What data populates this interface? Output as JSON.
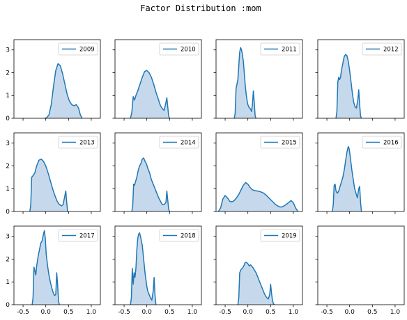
{
  "chart_data": {
    "type": "area",
    "title": "Factor Distribution :mom",
    "grid": false,
    "legend_placement": "upper right",
    "x_ticks": [
      "-0.5",
      "0.0",
      "0.5",
      "1.0"
    ],
    "y_ticks": [
      "0",
      "1",
      "2",
      "3"
    ],
    "xlim": [
      -0.7,
      1.2
    ],
    "ylim": [
      0,
      3.45
    ],
    "line_color": "#1f77b4",
    "fill_color": "#c6d9ec",
    "panels": [
      {
        "series": "2009",
        "x": [
          -0.02,
          0.02,
          0.07,
          0.12,
          0.17,
          0.22,
          0.27,
          0.32,
          0.37,
          0.42,
          0.47,
          0.52,
          0.57,
          0.62,
          0.67,
          0.72,
          0.76,
          0.8
        ],
        "y": [
          0,
          0.02,
          0.15,
          0.6,
          1.4,
          2.1,
          2.4,
          2.3,
          1.95,
          1.5,
          1.05,
          0.75,
          0.6,
          0.55,
          0.6,
          0.45,
          0.15,
          0
        ]
      },
      {
        "series": "2010",
        "x": [
          -0.36,
          -0.33,
          -0.3,
          -0.27,
          -0.24,
          -0.2,
          -0.15,
          -0.1,
          -0.05,
          0,
          0.05,
          0.1,
          0.15,
          0.2,
          0.25,
          0.3,
          0.35,
          0.38,
          0.41,
          0.44,
          0.46,
          0.48,
          0.5
        ],
        "y": [
          0,
          0.25,
          0.95,
          0.8,
          1.0,
          1.2,
          1.5,
          1.8,
          2.05,
          2.1,
          2.0,
          1.8,
          1.5,
          1.15,
          0.85,
          0.55,
          0.4,
          0.35,
          0.6,
          0.9,
          0.5,
          0.1,
          0
        ]
      },
      {
        "series": "2011",
        "x": [
          -0.3,
          -0.28,
          -0.26,
          -0.24,
          -0.22,
          -0.2,
          -0.18,
          -0.16,
          -0.14,
          -0.12,
          -0.1,
          -0.08,
          -0.06,
          -0.04,
          -0.02,
          0,
          0.02,
          0.04,
          0.06,
          0.08,
          0.1,
          0.12,
          0.14,
          0.16,
          0.18
        ],
        "y": [
          0,
          0.2,
          1.3,
          1.5,
          1.7,
          2.3,
          2.9,
          3.1,
          3.0,
          2.8,
          2.5,
          2.0,
          1.5,
          1.1,
          0.8,
          0.6,
          0.5,
          0.45,
          0.4,
          0.3,
          0.6,
          1.2,
          0.7,
          0.1,
          0
        ]
      },
      {
        "series": "2012",
        "x": [
          -0.3,
          -0.28,
          -0.26,
          -0.24,
          -0.22,
          -0.2,
          -0.18,
          -0.15,
          -0.12,
          -0.09,
          -0.06,
          -0.03,
          0,
          0.03,
          0.06,
          0.09,
          0.12,
          0.15,
          0.18,
          0.2,
          0.22,
          0.24,
          0.26
        ],
        "y": [
          0,
          0.3,
          1.6,
          1.8,
          1.7,
          1.8,
          2.1,
          2.4,
          2.7,
          2.8,
          2.75,
          2.5,
          2.1,
          1.6,
          1.1,
          0.7,
          0.5,
          0.45,
          0.8,
          1.25,
          0.6,
          0.1,
          0
        ]
      },
      {
        "series": "2013",
        "x": [
          -0.35,
          -0.33,
          -0.31,
          -0.29,
          -0.27,
          -0.24,
          -0.2,
          -0.15,
          -0.1,
          -0.05,
          0,
          0.05,
          0.1,
          0.15,
          0.2,
          0.25,
          0.3,
          0.35,
          0.38,
          0.41,
          0.44,
          0.46,
          0.48
        ],
        "y": [
          0,
          0.3,
          1.5,
          1.55,
          1.6,
          1.7,
          2.0,
          2.25,
          2.3,
          2.2,
          2.0,
          1.7,
          1.35,
          1.0,
          0.7,
          0.45,
          0.3,
          0.25,
          0.3,
          0.6,
          0.9,
          0.4,
          0
        ]
      },
      {
        "series": "2014",
        "x": [
          -0.33,
          -0.31,
          -0.29,
          -0.27,
          -0.25,
          -0.22,
          -0.19,
          -0.16,
          -0.13,
          -0.1,
          -0.07,
          -0.04,
          -0.01,
          0.02,
          0.06,
          0.1,
          0.14,
          0.18,
          0.22,
          0.26,
          0.3,
          0.34,
          0.38,
          0.42,
          0.44,
          0.46,
          0.48,
          0.5
        ],
        "y": [
          0,
          0.25,
          1.2,
          1.15,
          1.3,
          1.5,
          1.8,
          2.0,
          2.1,
          2.3,
          2.35,
          2.2,
          2.1,
          1.9,
          1.7,
          1.4,
          1.2,
          1.0,
          0.8,
          0.6,
          0.45,
          0.3,
          0.3,
          0.4,
          0.9,
          0.5,
          0.1,
          0
        ]
      },
      {
        "series": "2015",
        "x": [
          -0.65,
          -0.6,
          -0.55,
          -0.5,
          -0.45,
          -0.4,
          -0.35,
          -0.3,
          -0.25,
          -0.2,
          -0.15,
          -0.1,
          -0.05,
          0,
          0.05,
          0.1,
          0.15,
          0.2,
          0.25,
          0.3,
          0.35,
          0.4,
          0.45,
          0.5,
          0.55,
          0.6,
          0.65,
          0.7,
          0.75,
          0.8,
          0.85,
          0.9,
          0.95,
          1.0,
          1.05,
          1.1
        ],
        "y": [
          0,
          0.15,
          0.55,
          0.7,
          0.6,
          0.45,
          0.42,
          0.48,
          0.6,
          0.75,
          0.95,
          1.15,
          1.27,
          1.2,
          1.05,
          0.95,
          0.92,
          0.9,
          0.88,
          0.85,
          0.8,
          0.72,
          0.62,
          0.52,
          0.42,
          0.32,
          0.25,
          0.2,
          0.2,
          0.25,
          0.32,
          0.4,
          0.48,
          0.38,
          0.15,
          0
        ]
      },
      {
        "series": "2016",
        "x": [
          -0.38,
          -0.36,
          -0.34,
          -0.32,
          -0.3,
          -0.27,
          -0.24,
          -0.21,
          -0.18,
          -0.15,
          -0.12,
          -0.09,
          -0.06,
          -0.03,
          -0.01,
          0.02,
          0.05,
          0.08,
          0.11,
          0.14,
          0.17,
          0.2,
          0.22,
          0.24,
          0.26
        ],
        "y": [
          0,
          0.3,
          1.15,
          1.2,
          0.9,
          0.8,
          0.9,
          1.1,
          1.3,
          1.5,
          1.8,
          2.2,
          2.6,
          2.85,
          2.75,
          2.3,
          1.8,
          1.4,
          1.0,
          0.8,
          0.6,
          1.0,
          1.1,
          0.4,
          0
        ]
      },
      {
        "series": "2017",
        "x": [
          -0.3,
          -0.28,
          -0.26,
          -0.24,
          -0.22,
          -0.2,
          -0.17,
          -0.14,
          -0.11,
          -0.08,
          -0.05,
          -0.03,
          -0.01,
          0.01,
          0.04,
          0.07,
          0.1,
          0.13,
          0.16,
          0.19,
          0.22,
          0.24,
          0.26,
          0.28,
          0.3
        ],
        "y": [
          0,
          0.3,
          1.65,
          1.5,
          1.3,
          1.7,
          2.1,
          2.4,
          2.7,
          2.8,
          3.1,
          3.25,
          2.9,
          2.2,
          1.7,
          1.3,
          1.0,
          0.75,
          0.55,
          0.4,
          0.45,
          1.4,
          0.9,
          0.15,
          0
        ]
      },
      {
        "series": "2018",
        "x": [
          -0.36,
          -0.34,
          -0.32,
          -0.3,
          -0.28,
          -0.26,
          -0.24,
          -0.22,
          -0.2,
          -0.18,
          -0.16,
          -0.14,
          -0.12,
          -0.1,
          -0.08,
          -0.06,
          -0.04,
          -0.02,
          0,
          0.02,
          0.05,
          0.08,
          0.11,
          0.14,
          0.16,
          0.18,
          0.2
        ],
        "y": [
          0,
          0.3,
          1.6,
          0.9,
          1.4,
          1.2,
          1.6,
          2.4,
          2.9,
          3.1,
          3.15,
          3.0,
          2.8,
          2.6,
          2.2,
          1.8,
          1.4,
          1.1,
          0.8,
          0.6,
          0.45,
          0.3,
          0.2,
          0.6,
          1.2,
          0.4,
          0
        ]
      },
      {
        "series": "2019",
        "x": [
          -0.22,
          -0.2,
          -0.18,
          -0.15,
          -0.12,
          -0.09,
          -0.06,
          -0.03,
          0,
          0.03,
          0.06,
          0.09,
          0.12,
          0.15,
          0.18,
          0.21,
          0.24,
          0.27,
          0.3,
          0.33,
          0.36,
          0.39,
          0.42,
          0.45,
          0.48,
          0.5,
          0.52,
          0.54,
          0.56,
          0.58
        ],
        "y": [
          0,
          0.3,
          1.4,
          1.55,
          1.6,
          1.7,
          1.85,
          1.85,
          1.8,
          1.7,
          1.75,
          1.68,
          1.6,
          1.5,
          1.4,
          1.25,
          1.1,
          0.95,
          0.8,
          0.65,
          0.5,
          0.38,
          0.3,
          0.25,
          0.45,
          0.9,
          0.5,
          0.2,
          0.05,
          0
        ]
      },
      {
        "series": "",
        "x": [],
        "y": []
      }
    ]
  }
}
